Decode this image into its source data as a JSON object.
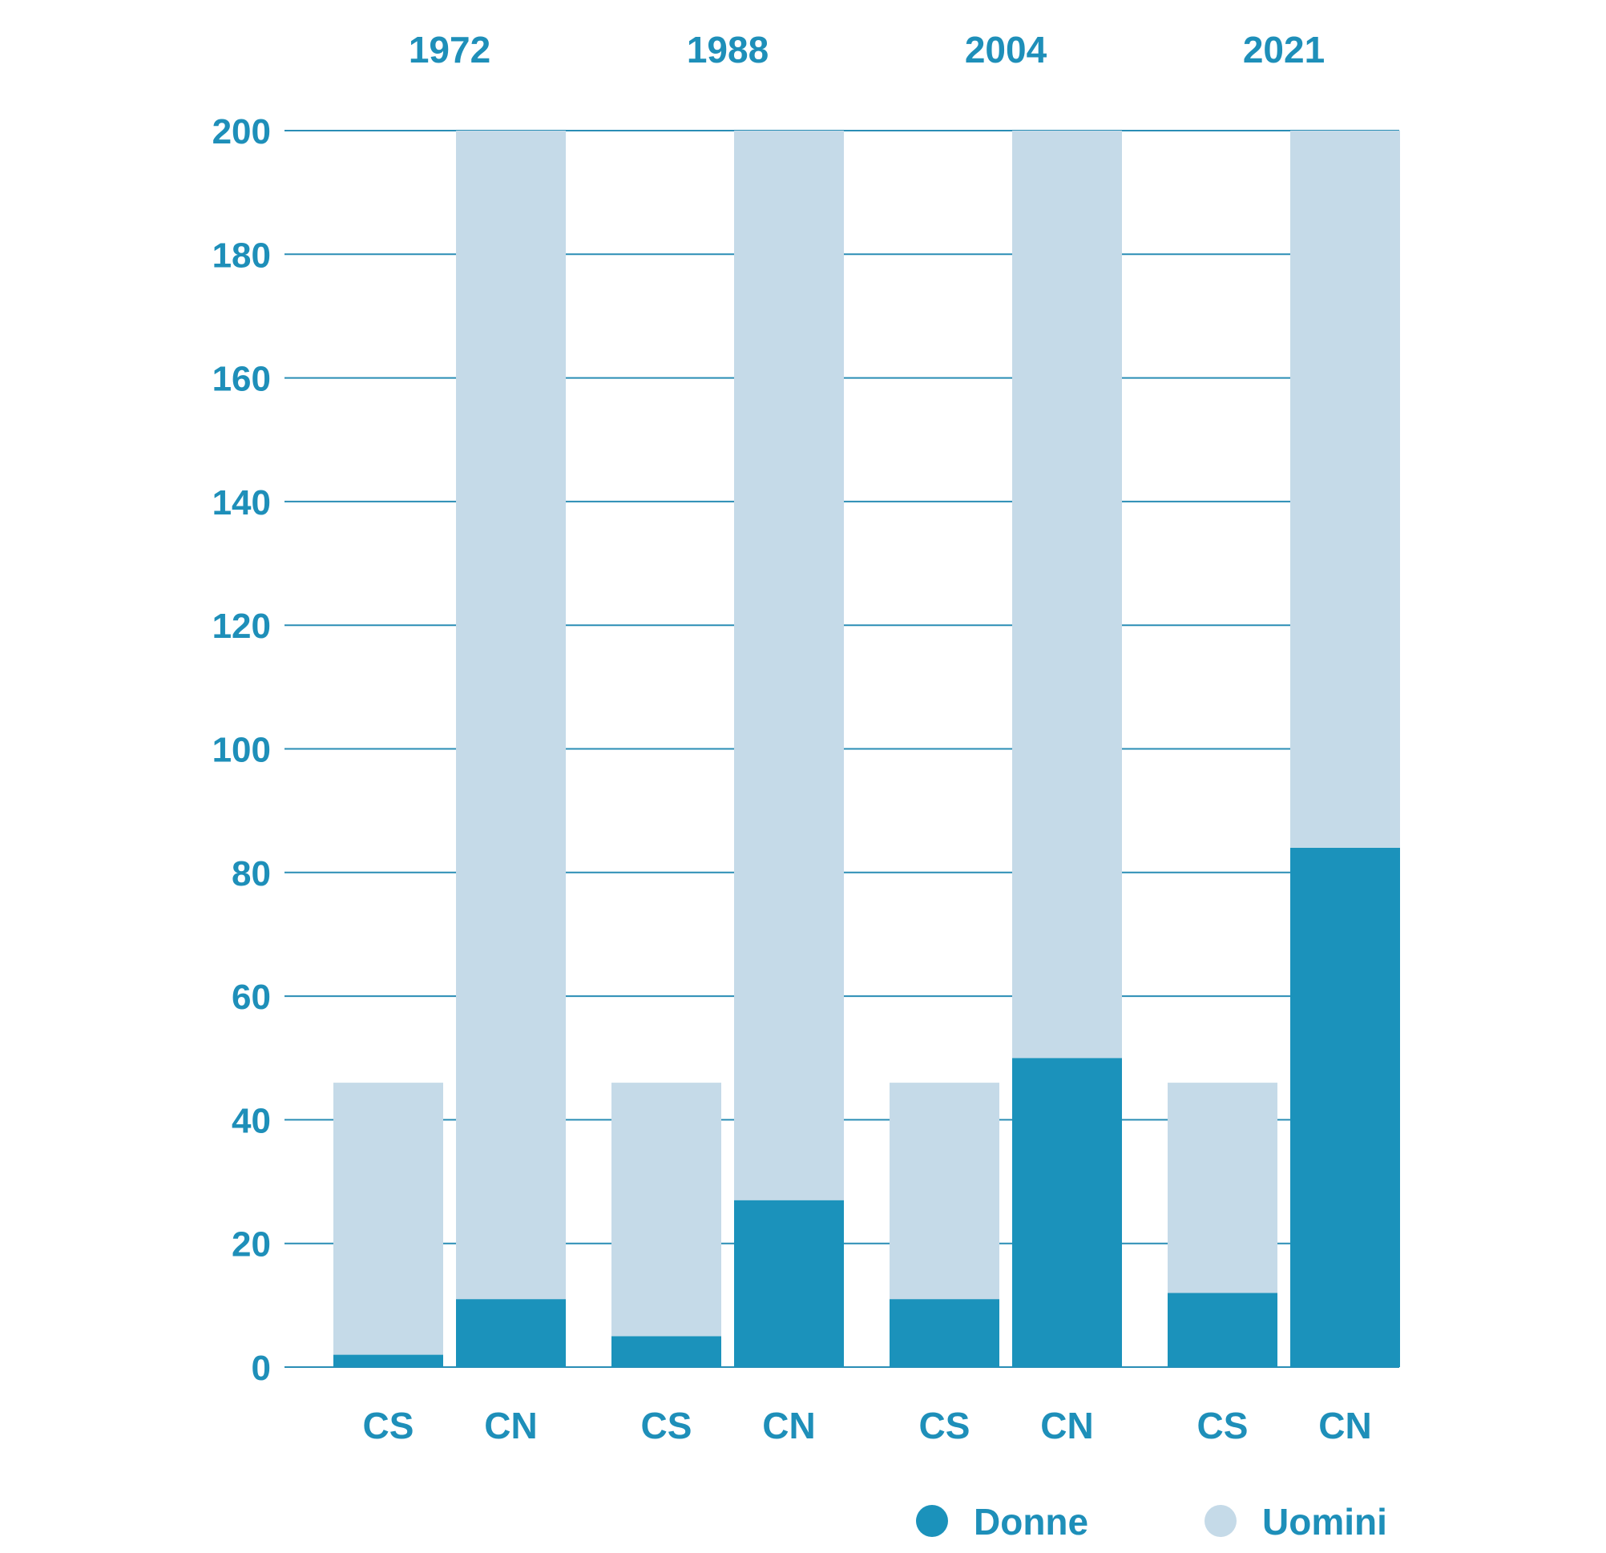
{
  "chart_data": {
    "type": "bar",
    "stacked": true,
    "groups": [
      "1972",
      "1988",
      "2004",
      "2021"
    ],
    "categories": [
      "CS",
      "CN"
    ],
    "ylim": [
      0,
      200
    ],
    "yticks": [
      0,
      20,
      40,
      60,
      80,
      100,
      120,
      140,
      160,
      180,
      200
    ],
    "grid": true,
    "legend_position": "bottom-right",
    "series": [
      {
        "name": "Donne",
        "color": "#1b92bb",
        "values": [
          [
            2,
            11
          ],
          [
            5,
            27
          ],
          [
            11,
            50
          ],
          [
            12,
            84
          ]
        ]
      },
      {
        "name": "Uomini",
        "color": "#c5dae8",
        "values": [
          [
            44,
            189
          ],
          [
            41,
            173
          ],
          [
            35,
            150
          ],
          [
            34,
            116
          ]
        ]
      }
    ],
    "text_color": "#1e8fb9",
    "gridline_color": "#2a8db5"
  }
}
